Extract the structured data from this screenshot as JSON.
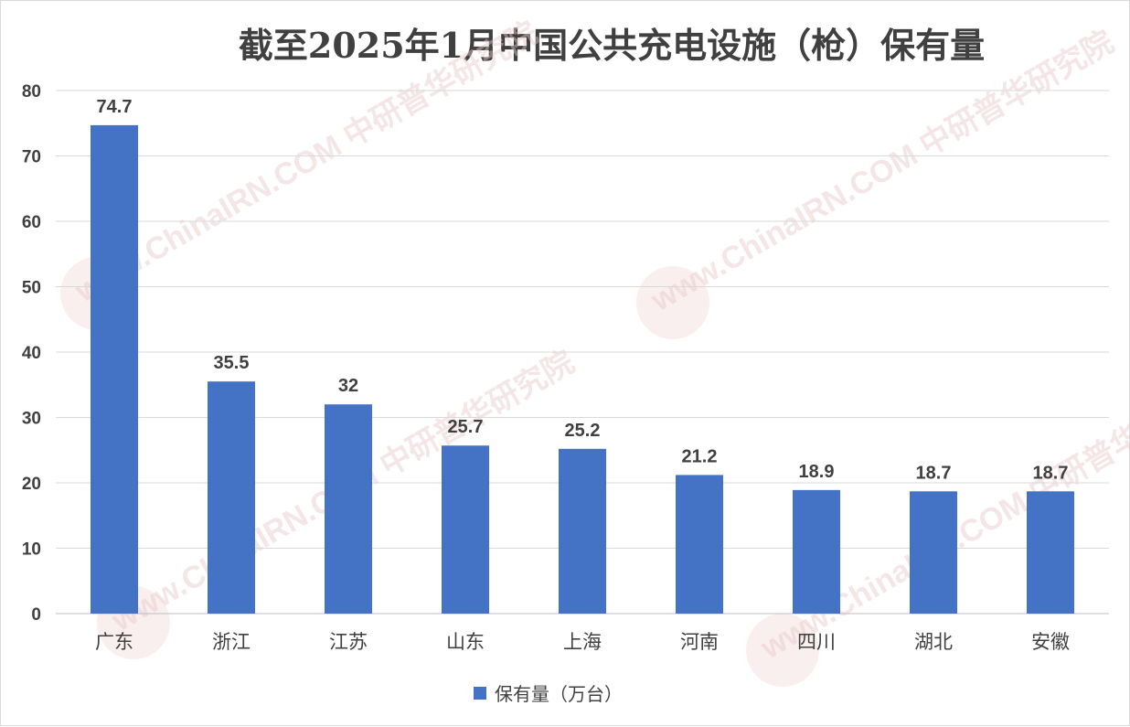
{
  "chart_data": {
    "type": "bar",
    "title": "截至2025年1月中国公共充电设施（枪）保有量",
    "categories": [
      "广东",
      "浙江",
      "江苏",
      "山东",
      "上海",
      "河南",
      "四川",
      "湖北",
      "安徽"
    ],
    "series": [
      {
        "name": "保有量（万台）",
        "values": [
          74.7,
          35.5,
          32,
          25.7,
          25.2,
          21.2,
          18.9,
          18.7,
          18.7
        ],
        "color": "#4472C4"
      }
    ],
    "data_labels": [
      "74.7",
      "35.5",
      "32",
      "25.7",
      "25.2",
      "21.2",
      "18.9",
      "18.7",
      "18.7"
    ],
    "xlabel": "",
    "ylabel": "",
    "ylim": [
      0,
      80
    ],
    "yticks": [
      0,
      10,
      20,
      30,
      40,
      50,
      60,
      70,
      80
    ],
    "grid": true,
    "legend_position": "bottom"
  },
  "watermark": "www.ChinaIRN.COM 中研普华研究院"
}
